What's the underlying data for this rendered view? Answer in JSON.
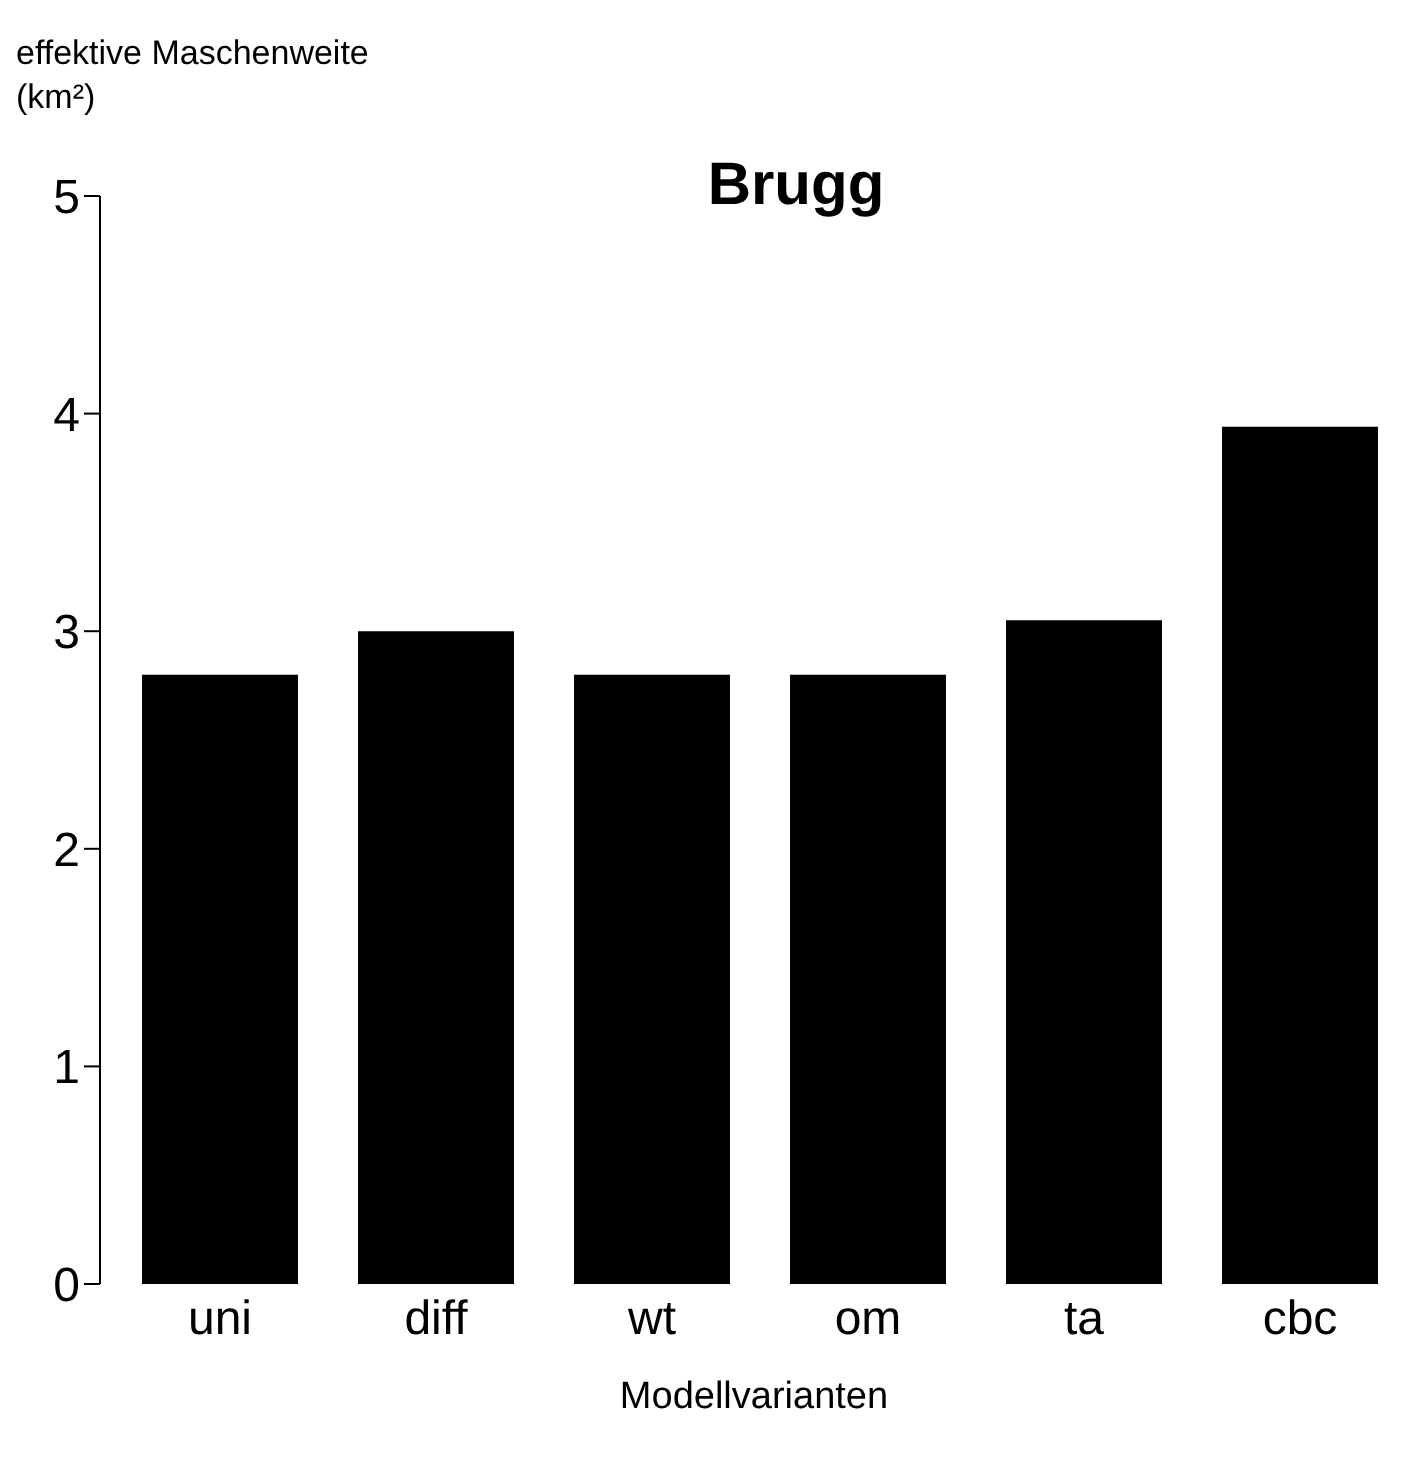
{
  "chart_data": {
    "type": "bar",
    "title": "Brugg",
    "xlabel": "Modellvarianten",
    "ylabel": "effektive Maschenweite (km²)",
    "categories": [
      "uni",
      "diff",
      "wt",
      "om",
      "ta",
      "cbc"
    ],
    "values": [
      2.8,
      3.0,
      2.8,
      2.8,
      3.05,
      3.94
    ],
    "color": "#000000",
    "ylim": [
      0,
      5
    ],
    "yticks": [
      0,
      1,
      2,
      3,
      4,
      5
    ],
    "grid": false,
    "legend": false
  }
}
